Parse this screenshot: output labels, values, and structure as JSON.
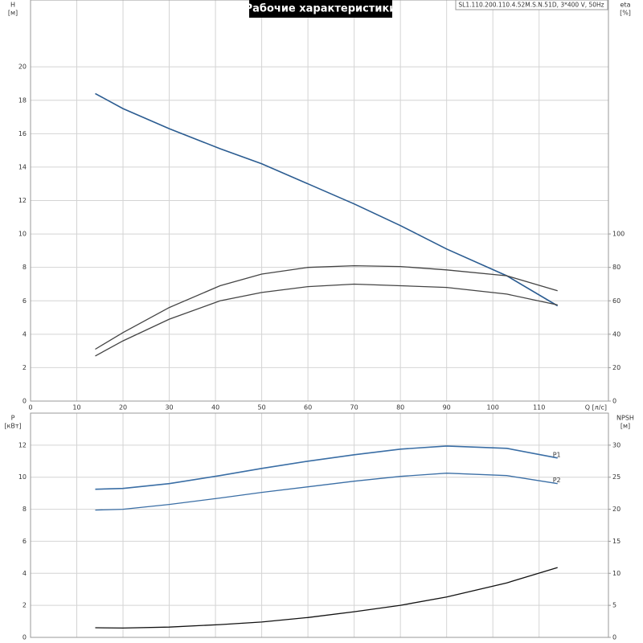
{
  "chart_data": [
    {
      "type": "line",
      "title": "Рабочие характеристики",
      "subtitle": "SL1.110.200.110.4.52M.S.N.51D, 3*400 V, 50Hz",
      "ylabel": "H",
      "yunit": "[м]",
      "y2label": "eta",
      "y2unit": "[%]",
      "x_label": "Q [л/с]",
      "x": [
        14,
        20,
        30,
        41,
        50,
        60,
        70,
        80,
        90,
        103,
        114
      ],
      "xlim": [
        0,
        125
      ],
      "xticks": [
        0,
        10,
        20,
        30,
        40,
        50,
        60,
        70,
        80,
        90,
        100,
        110
      ],
      "ylim": [
        0,
        24
      ],
      "yticks": [
        0,
        2,
        4,
        6,
        8,
        10,
        12,
        14,
        16,
        18,
        20
      ],
      "y2lim": [
        0,
        240
      ],
      "y2ticks": [
        0,
        20,
        40,
        60,
        80,
        100
      ],
      "grid": true,
      "series": [
        {
          "color": "#2b5c91",
          "values": [
            18.4,
            17.5,
            16.3,
            15.1,
            14.2,
            13.0,
            11.8,
            10.5,
            9.1,
            7.5,
            5.7
          ]
        },
        {
          "color": "#444444",
          "axis": "y2",
          "values": [
            31,
            41,
            56,
            69,
            76,
            80,
            81,
            80.5,
            78.5,
            75,
            66
          ]
        },
        {
          "color": "#444444",
          "axis": "y2",
          "values": [
            27,
            36,
            49,
            60,
            65,
            68.5,
            70,
            69,
            68,
            64,
            57.5
          ]
        }
      ]
    },
    {
      "type": "line",
      "ylabel": "P",
      "yunit": "[кВт]",
      "y2label": "NPSH",
      "y2unit": "[м]",
      "x": [
        14,
        20,
        30,
        41,
        50,
        60,
        70,
        80,
        90,
        103,
        114
      ],
      "xlim": [
        0,
        125
      ],
      "xticks": [
        0,
        10,
        20,
        30,
        40,
        50,
        60,
        70,
        80,
        90,
        100,
        110
      ],
      "ylim": [
        0,
        14
      ],
      "yticks": [
        0,
        2,
        4,
        6,
        8,
        10,
        12
      ],
      "y2lim": [
        0,
        35
      ],
      "y2ticks": [
        0,
        5,
        10,
        15,
        20,
        25,
        30
      ],
      "grid": true,
      "series": [
        {
          "name": "P1",
          "color": "#3a6ea5",
          "values": [
            9.25,
            9.3,
            9.6,
            10.1,
            10.55,
            11.0,
            11.4,
            11.75,
            11.95,
            11.8,
            11.2
          ]
        },
        {
          "name": "P2",
          "color": "#3a6ea5",
          "values": [
            7.95,
            8.0,
            8.3,
            8.7,
            9.05,
            9.4,
            9.75,
            10.05,
            10.25,
            10.1,
            9.6
          ]
        },
        {
          "color": "#111111",
          "axis": "y2",
          "values": [
            1.5,
            1.45,
            1.6,
            2.0,
            2.4,
            3.1,
            4.0,
            5.0,
            6.3,
            8.5,
            10.9
          ]
        }
      ]
    }
  ]
}
